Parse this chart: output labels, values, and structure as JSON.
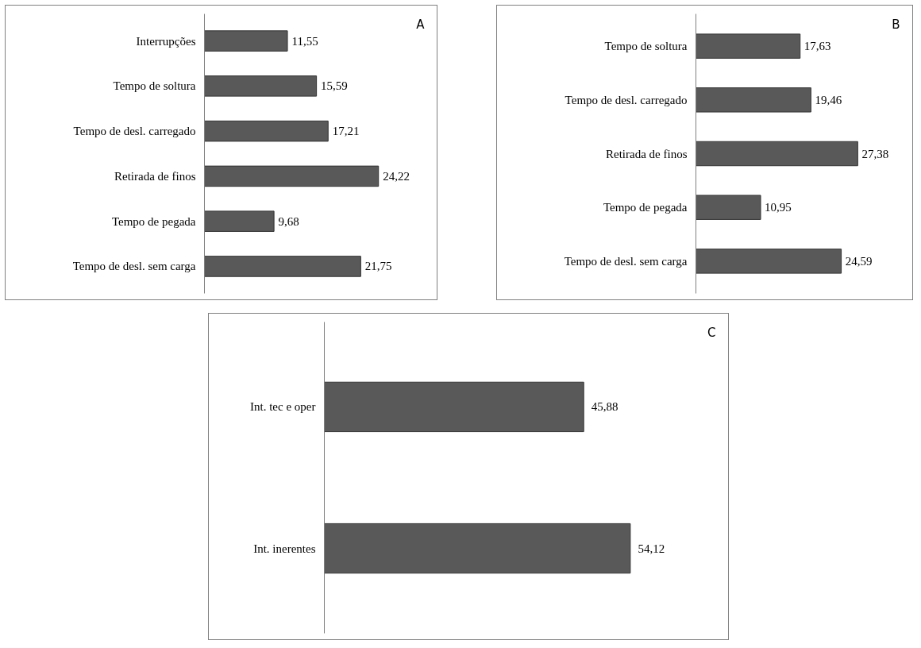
{
  "chart_data": [
    {
      "type": "bar",
      "orientation": "horizontal",
      "annotations": [
        "A"
      ],
      "categories": [
        "Interrupções",
        "Tempo de soltura",
        "Tempo de desl. carregado",
        "Retirada de finos",
        "Tempo de pegada",
        "Tempo de desl. sem carga"
      ],
      "values": [
        11.55,
        15.59,
        17.21,
        24.22,
        9.68,
        21.75
      ],
      "value_labels": [
        "11,55",
        "15,59",
        "17,21",
        "24,22",
        "9,68",
        "21,75"
      ],
      "color": "#595959",
      "grid": false,
      "tick_labels": "y"
    },
    {
      "type": "bar",
      "orientation": "horizontal",
      "annotations": [
        "B"
      ],
      "categories": [
        "Tempo de soltura",
        "Tempo de desl. carregado",
        "Retirada de finos",
        "Tempo de pegada",
        "Tempo de desl. sem carga"
      ],
      "values": [
        17.63,
        19.46,
        27.38,
        10.95,
        24.59
      ],
      "value_labels": [
        "17,63",
        "19,46",
        "27,38",
        "10,95",
        "24,59"
      ],
      "color": "#595959",
      "grid": false,
      "tick_labels": "y"
    },
    {
      "type": "bar",
      "orientation": "horizontal",
      "annotations": [
        "C"
      ],
      "categories": [
        "Int. tec e oper",
        "Int. inerentes"
      ],
      "values": [
        45.88,
        54.12
      ],
      "value_labels": [
        "45,88",
        "54,12"
      ],
      "color": "#595959",
      "grid": false,
      "tick_labels": "y"
    }
  ]
}
